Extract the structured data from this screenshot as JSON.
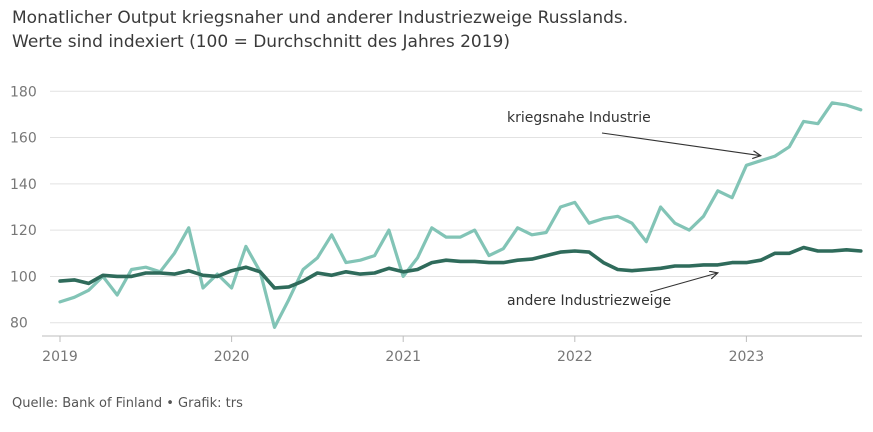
{
  "title": "Monatlicher Output kriegsnaher und anderer Industriezweige Russlands.",
  "subtitle": "Werte sind indexiert (100 = Durchschnitt des Jahres 2019)",
  "source": "Quelle: Bank of Finland • Grafik: trs",
  "chart_data": {
    "type": "line",
    "title": "Monatlicher Output kriegsnaher und anderer Industriezweige Russlands.",
    "subtitle": "Werte sind indexiert (100 = Durchschnitt des Jahres 2019)",
    "xlabel": "",
    "ylabel": "",
    "x_start": "2019-01",
    "x_end": "2023-09",
    "x_ticks": [
      {
        "label": "2019",
        "month_index": 0
      },
      {
        "label": "2020",
        "month_index": 12
      },
      {
        "label": "2021",
        "month_index": 24
      },
      {
        "label": "2022",
        "month_index": 36
      },
      {
        "label": "2023",
        "month_index": 48
      }
    ],
    "y_ticks": [
      80,
      100,
      120,
      140,
      160,
      180
    ],
    "ylim": [
      76,
      184
    ],
    "grid": true,
    "series": [
      {
        "name": "kriegsnahe Industrie",
        "color": "#82c4b6",
        "values": [
          89,
          91,
          94,
          100,
          92,
          103,
          104,
          102,
          110,
          121,
          95,
          101,
          95,
          113,
          102,
          78,
          90,
          103,
          108,
          118,
          106,
          107,
          109,
          120,
          100,
          108,
          121,
          117,
          117,
          120,
          109,
          112,
          121,
          118,
          119,
          130,
          132,
          123,
          125,
          126,
          123,
          115,
          130,
          123,
          120,
          126,
          137,
          134,
          148,
          150,
          152,
          156,
          167,
          166,
          175,
          174,
          172
        ]
      },
      {
        "name": "andere Industriezweige",
        "color": "#2f6b5b",
        "values": [
          98,
          98.5,
          97,
          100.5,
          100,
          100,
          101.5,
          101.5,
          101,
          102.5,
          100.5,
          100,
          102.5,
          104,
          102,
          95,
          95.5,
          98,
          101.5,
          100.5,
          102,
          101,
          101.5,
          103.5,
          102,
          103,
          106,
          107,
          106.5,
          106.5,
          106,
          106,
          107,
          107.5,
          109,
          110.5,
          111,
          110.5,
          106,
          103,
          102.5,
          103,
          103.5,
          104.5,
          104.5,
          105,
          105,
          106,
          106,
          107,
          110,
          110,
          112.5,
          111,
          111,
          111.5,
          111
        ]
      }
    ],
    "annotations": [
      {
        "text": "kriegsnahe Industrie",
        "series": 0,
        "arrow_to_month_index": 49
      },
      {
        "text": "andere Industriezweige",
        "series": 1,
        "arrow_to_month_index": 46
      }
    ]
  }
}
